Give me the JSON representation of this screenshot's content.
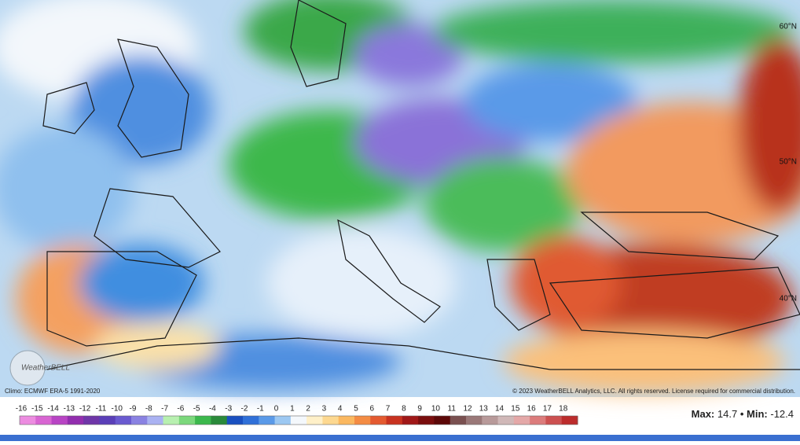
{
  "map": {
    "climo_note": "Climo: ECMWF ERA-5 1991-2020",
    "copyright": "© 2023 WeatherBELL Analytics, LLC. All rights reserved. License required for commercial distribution.",
    "logo": "WeatherBELL",
    "latitude_labels": [
      "60°N",
      "50°N",
      "40°N"
    ],
    "legend": {
      "ticks": [
        -16,
        -15,
        -14,
        -13,
        -12,
        -11,
        -10,
        -9,
        -8,
        -7,
        -6,
        -5,
        -4,
        -3,
        -2,
        -1,
        0,
        1,
        2,
        3,
        4,
        5,
        6,
        7,
        8,
        9,
        10,
        11,
        12,
        13,
        14,
        15,
        16,
        17,
        18
      ],
      "colors": [
        "#ec8ce0",
        "#d865d2",
        "#b844c4",
        "#922eae",
        "#6f36a8",
        "#5a3fb8",
        "#6a5ad0",
        "#8a82e2",
        "#aab2f2",
        "#b8f0b0",
        "#7cd87c",
        "#3cb84c",
        "#2a8a3a",
        "#1a50c0",
        "#3070d8",
        "#5a9ae8",
        "#9cc8f2",
        "#f4f8fc",
        "#fff0c8",
        "#fdd890",
        "#fbb860",
        "#f48c44",
        "#e45a30",
        "#c83220",
        "#a01818",
        "#7a0e0e",
        "#5c0808",
        "#7a5050",
        "#9a7878",
        "#b89a9a",
        "#d0b8b8",
        "#e4a8a8",
        "#dc7c7c",
        "#cc5050",
        "#bc2c2c"
      ]
    },
    "stats": {
      "max_label": "Max:",
      "max": 14.7,
      "separator": "•",
      "min_label": "Min:",
      "min": -12.4
    }
  }
}
